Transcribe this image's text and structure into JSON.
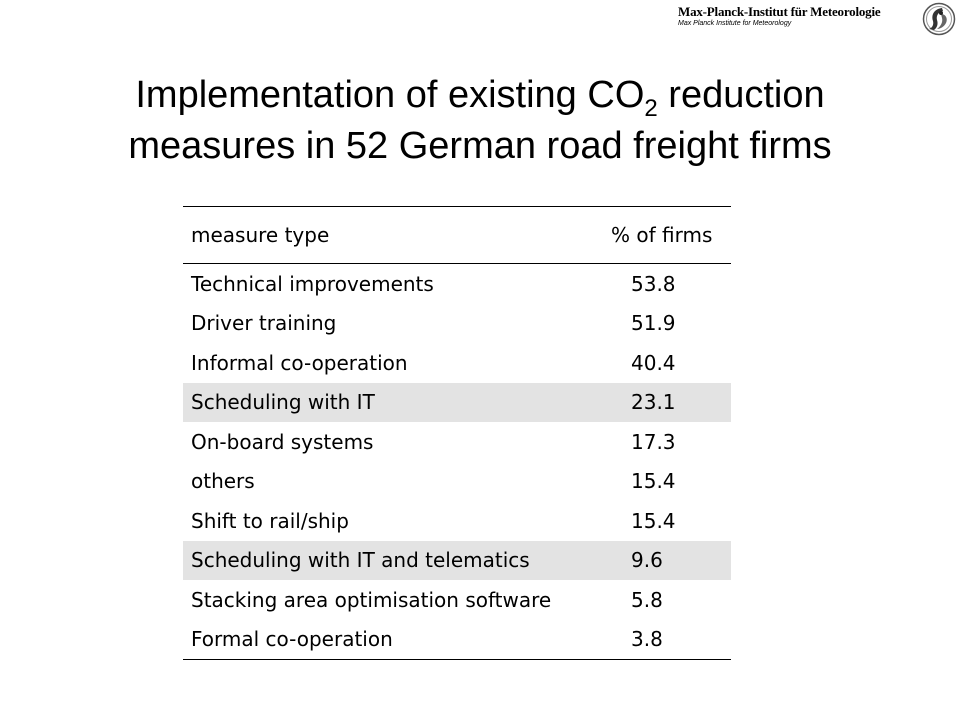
{
  "header": {
    "institute_name": "Max-Planck-Institut für Meteorologie",
    "institute_sub": "Max Planck Institute for Meteorology",
    "logo_icon": "mpg-minerva-logo"
  },
  "title": {
    "line1_pre": "Implementation of existing CO",
    "line1_sub": "2",
    "line1_post": " reduction",
    "line2": "measures in 52 German road freight firms"
  },
  "table": {
    "headers": [
      "measure type",
      "% of firms"
    ],
    "rows": [
      {
        "measure": "Technical improvements",
        "pct": "53.8"
      },
      {
        "measure": "Driver training",
        "pct": "51.9"
      },
      {
        "measure": "Informal co-operation",
        "pct": "40.4"
      },
      {
        "measure": "Scheduling with IT",
        "pct": "23.1"
      },
      {
        "measure": "On-board systems",
        "pct": "17.3"
      },
      {
        "measure": "others",
        "pct": "15.4"
      },
      {
        "measure": "Shift to rail/ship",
        "pct": "15.4"
      },
      {
        "measure": "Scheduling with IT and telematics",
        "pct": "9.6"
      },
      {
        "measure": "Stacking area optimisation software",
        "pct": "5.8"
      },
      {
        "measure": "Formal co-operation",
        "pct": "3.8"
      }
    ],
    "highlight_color": "#e3e3e3"
  }
}
